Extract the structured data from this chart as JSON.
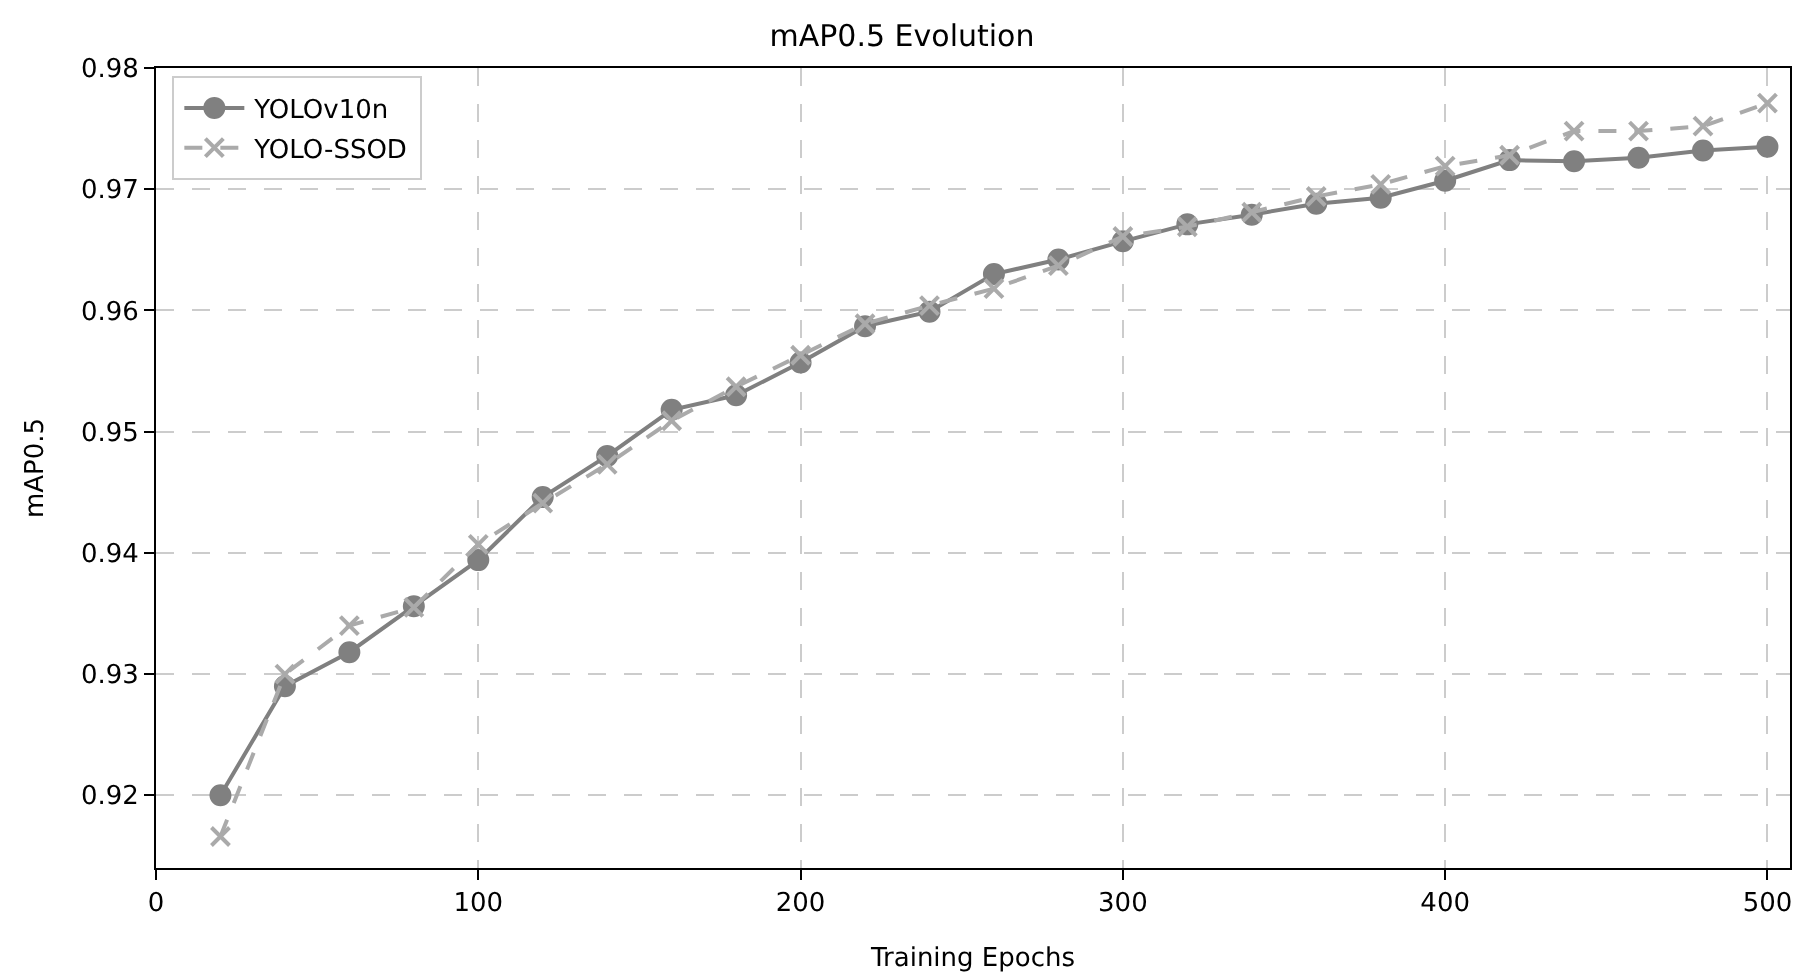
{
  "chart_data": {
    "type": "line",
    "title": "mAP0.5 Evolution",
    "xlabel": "Training Epochs",
    "ylabel": "mAP0.5",
    "x": [
      20,
      40,
      60,
      80,
      100,
      120,
      140,
      160,
      180,
      200,
      220,
      240,
      260,
      280,
      300,
      320,
      340,
      360,
      380,
      400,
      420,
      440,
      460,
      480,
      500
    ],
    "series": [
      {
        "name": "YOLOv10n",
        "color": "#808080",
        "marker": "circle",
        "line_style": "solid",
        "values": [
          0.92,
          0.929,
          0.9318,
          0.9356,
          0.9394,
          0.9446,
          0.948,
          0.9518,
          0.953,
          0.9557,
          0.9587,
          0.9599,
          0.963,
          0.9642,
          0.9657,
          0.9671,
          0.9679,
          0.9688,
          0.9693,
          0.9707,
          0.9724,
          0.9723,
          0.9726,
          0.9732,
          0.9735
        ]
      },
      {
        "name": "YOLO-SSOD",
        "color": "#aaaaaa",
        "marker": "cross",
        "line_style": "dashed",
        "values": [
          0.9166,
          0.93,
          0.934,
          0.9355,
          0.9407,
          0.9441,
          0.9473,
          0.9509,
          0.9537,
          0.9563,
          0.9589,
          0.9604,
          0.9618,
          0.9637,
          0.9661,
          0.9669,
          0.9681,
          0.9694,
          0.9704,
          0.9719,
          0.9728,
          0.9748,
          0.9748,
          0.9752,
          0.9771
        ]
      }
    ],
    "xlim": [
      0,
      507
    ],
    "xticks": [
      0,
      100,
      200,
      300,
      400,
      500
    ],
    "ylim": [
      0.914,
      0.98
    ],
    "yticks": [
      0.92,
      0.93,
      0.94,
      0.95,
      0.96,
      0.97,
      0.98
    ],
    "grid": true,
    "legend": "top left"
  }
}
